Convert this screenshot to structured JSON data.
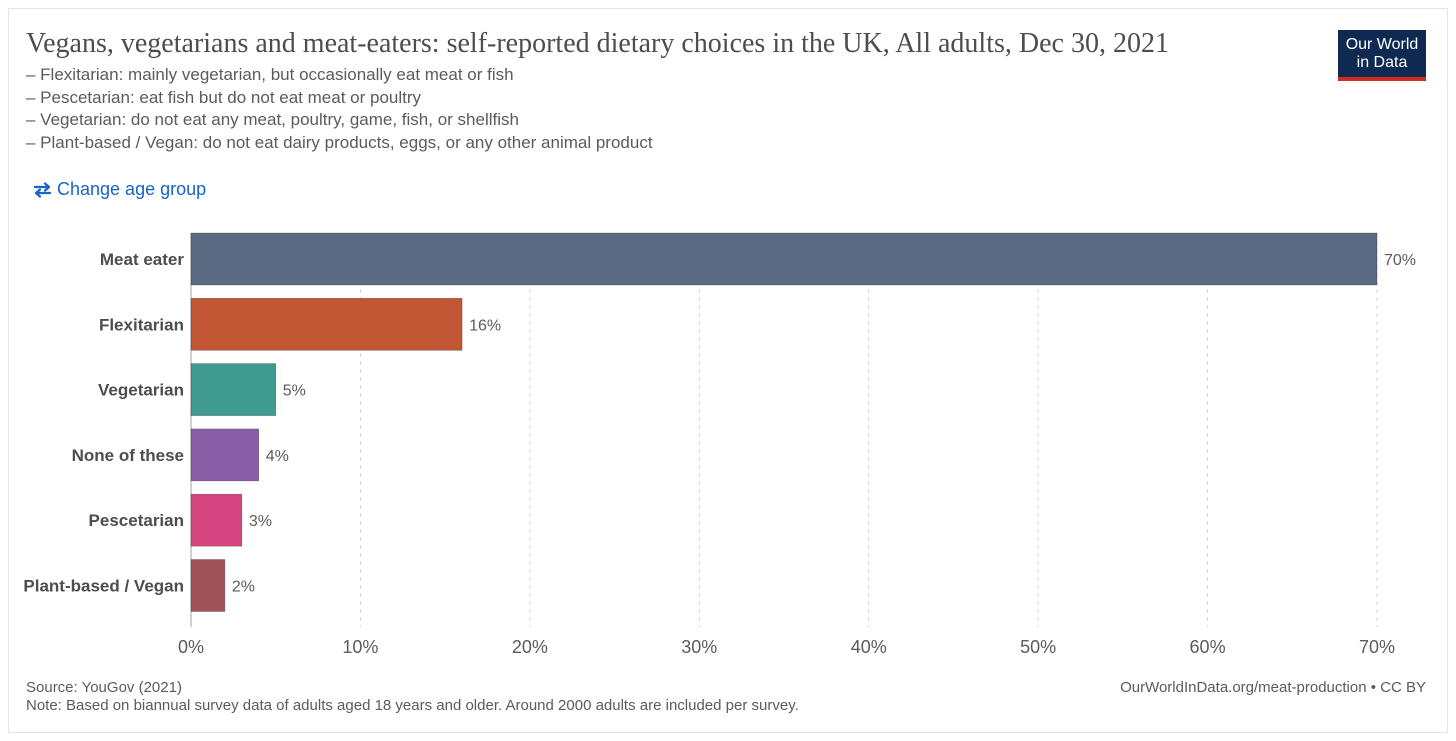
{
  "title": "Vegans, vegetarians and meat-eaters: self-reported dietary choices in the UK, All adults, Dec 30, 2021",
  "subtitle": [
    "– Flexitarian: mainly vegetarian, but occasionally eat meat or fish",
    "– Pescetarian: eat fish but do not eat meat or poultry",
    "– Vegetarian: do not eat any meat, poultry, game, fish, or shellfish",
    "– Plant-based / Vegan: do not eat dairy products, eggs, or any other animal product"
  ],
  "logo": {
    "line1": "Our World",
    "line2": "in Data"
  },
  "controls": {
    "change_label": "Change age group",
    "change_icon": "swap-arrows-icon"
  },
  "chart_data": {
    "type": "bar",
    "orientation": "horizontal",
    "categories": [
      "Meat eater",
      "Flexitarian",
      "Vegetarian",
      "None of these",
      "Pescetarian",
      "Plant-based / Vegan"
    ],
    "values": [
      70,
      16,
      5,
      4,
      3,
      2
    ],
    "value_labels": [
      "70%",
      "16%",
      "5%",
      "4%",
      "3%",
      "2%"
    ],
    "colors": [
      "#5a6a82",
      "#c05634",
      "#3f9a90",
      "#8a5ea6",
      "#d6447e",
      "#a05259"
    ],
    "xlim": [
      0,
      70
    ],
    "xticks": [
      0,
      10,
      20,
      30,
      40,
      50,
      60,
      70
    ],
    "xtick_labels": [
      "0%",
      "10%",
      "20%",
      "30%",
      "40%",
      "50%",
      "60%",
      "70%"
    ],
    "grid": "vertical-dashed"
  },
  "footer": {
    "source": "Source: YouGov (2021)",
    "note": "Note: Based on biannual survey data of adults aged 18 years and older. Around 2000 adults are included per survey.",
    "credit": "OurWorldInData.org/meat-production • CC BY"
  }
}
